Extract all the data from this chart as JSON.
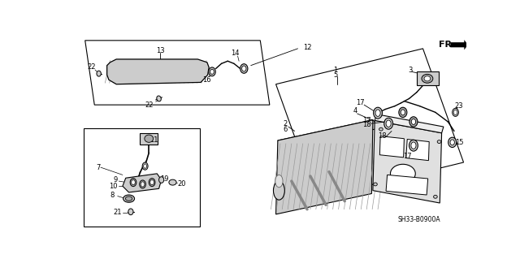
{
  "bg_color": "#ffffff",
  "line_color": "#000000",
  "diagram_code": "SH33-B0900A",
  "gray1": "#aaaaaa",
  "gray2": "#cccccc",
  "gray3": "#e0e0e0",
  "dgray": "#666666"
}
